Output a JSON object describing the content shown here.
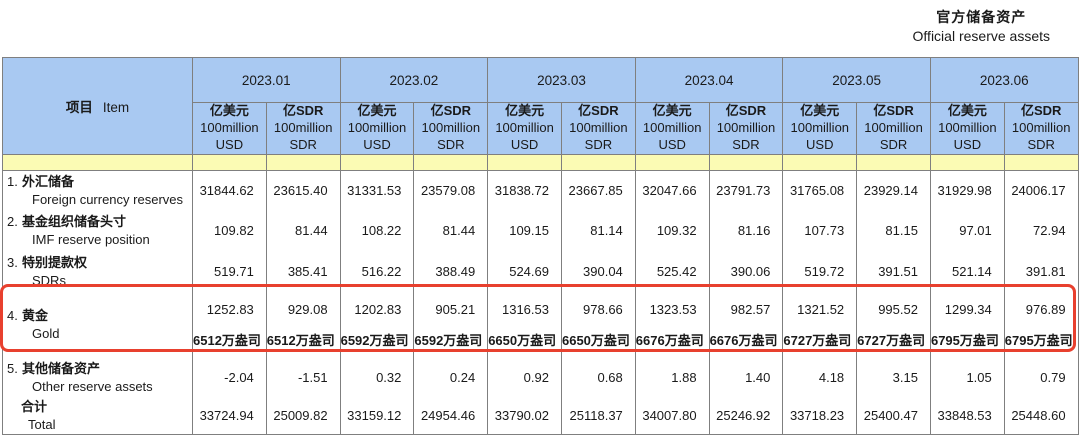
{
  "title": {
    "zh": "官方储备资产",
    "en": "Official reserve assets"
  },
  "colors": {
    "header_blue": "#a9c9f2",
    "band_yellow": "#fbfbb4",
    "highlight_red": "#e8402e",
    "border_gray": "#7f7f7f"
  },
  "table": {
    "item_header_zh": "项目",
    "item_header_en": "Item",
    "months": [
      "2023.01",
      "2023.02",
      "2023.03",
      "2023.04",
      "2023.05",
      "2023.06"
    ],
    "units": {
      "usd_zh": "亿美元",
      "usd_l2": "100million",
      "usd_l3": "USD",
      "sdr_zh": "亿SDR",
      "sdr_l2": "100million",
      "sdr_l3": "SDR"
    },
    "rows": [
      {
        "num": "1.",
        "zh": "外汇储备",
        "en": "Foreign currency reserves",
        "values": [
          "31844.62",
          "23615.40",
          "31331.53",
          "23579.08",
          "31838.72",
          "23667.85",
          "32047.66",
          "23791.73",
          "31765.08",
          "23929.14",
          "31929.98",
          "24006.17"
        ]
      },
      {
        "num": "2.",
        "zh": "基金组织储备头寸",
        "en": "IMF reserve position",
        "values": [
          "109.82",
          "81.44",
          "108.22",
          "81.44",
          "109.15",
          "81.14",
          "109.32",
          "81.16",
          "107.73",
          "81.15",
          "97.01",
          "72.94"
        ]
      },
      {
        "num": "3.",
        "zh": "特别提款权",
        "en": "SDRs",
        "values": [
          "519.71",
          "385.41",
          "516.22",
          "388.49",
          "524.69",
          "390.04",
          "525.42",
          "390.06",
          "519.72",
          "391.51",
          "521.14",
          "391.81"
        ]
      },
      {
        "num": "4.",
        "zh": "黄金",
        "en": "Gold",
        "values": [
          "1252.83",
          "929.08",
          "1202.83",
          "905.21",
          "1316.53",
          "978.66",
          "1323.53",
          "982.57",
          "1321.52",
          "995.52",
          "1299.34",
          "976.89"
        ],
        "ounces": [
          "6512万盎司",
          "6512万盎司",
          "6592万盎司",
          "6592万盎司",
          "6650万盎司",
          "6650万盎司",
          "6676万盎司",
          "6676万盎司",
          "6727万盎司",
          "6727万盎司",
          "6795万盎司",
          "6795万盎司"
        ]
      },
      {
        "num": "5.",
        "zh": "其他储备资产",
        "en": "Other reserve assets",
        "values": [
          "-2.04",
          "-1.51",
          "0.32",
          "0.24",
          "0.92",
          "0.68",
          "1.88",
          "1.40",
          "4.18",
          "3.15",
          "1.05",
          "0.79"
        ]
      },
      {
        "num": "",
        "zh": "合计",
        "en": "Total",
        "values": [
          "33724.94",
          "25009.82",
          "33159.12",
          "24954.46",
          "33790.02",
          "25118.37",
          "34007.80",
          "25246.92",
          "33718.23",
          "25400.47",
          "33848.53",
          "25448.60"
        ]
      }
    ]
  }
}
